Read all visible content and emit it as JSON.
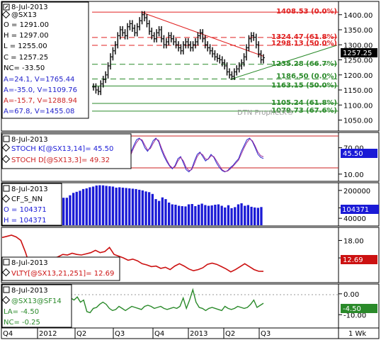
{
  "chart_data": [
    {
      "type": "ohlc",
      "panel": "price",
      "legend": {
        "date": "8-Jul-2013",
        "symbol": "@SX13",
        "lines": [
          "O = 1291.00",
          "H = 1297.00",
          "L = 1255.00",
          "C = 1257.25",
          "NC= -33.50"
        ],
        "indicators": [
          {
            "text": "A=24.1, V=1765.44",
            "color": "#2222cc"
          },
          {
            "text": "A=-35.0, V=1109.76",
            "color": "#2222cc"
          },
          {
            "text": "A=-15.7, V=1288.94",
            "color": "#cc2222"
          },
          {
            "text": "A=67.8, V=1455.08",
            "color": "#2222cc"
          }
        ]
      },
      "y_ticks": [
        "1400.00",
        "1350.00",
        "1300.00",
        "1250.00",
        "1200.00",
        "1150.00",
        "1100.00",
        "1050.00"
      ],
      "ylim": [
        1030,
        1430
      ],
      "last_value": "1257.25",
      "levels": [
        {
          "label": "1408.53 (0.0%)",
          "value": 1408.53,
          "color": "#e02020",
          "style": "solid"
        },
        {
          "label": "1324.47 (61.8%)",
          "value": 1324.47,
          "color": "#e02020",
          "style": "dashed"
        },
        {
          "label": "1298.13 (50.0%)",
          "value": 1298.13,
          "color": "#e02020",
          "style": "dashed"
        },
        {
          "label": "1235.28 (66.7%)",
          "value": 1235.28,
          "color": "#2a8a2a",
          "style": "dashed"
        },
        {
          "label": "1186.50 (0.0%)",
          "value": 1186.5,
          "color": "#2a8a2a",
          "style": "dashed"
        },
        {
          "label": "1163.15 (50.0%)",
          "value": 1163.15,
          "color": "#2a8a2a",
          "style": "solid"
        },
        {
          "label": "1105.24 (61.8%)",
          "value": 1105.24,
          "color": "#2a8a2a",
          "style": "solid"
        },
        {
          "label": "1079.73 (67.6%)",
          "value": 1079.73,
          "color": "#2a8a2a",
          "style": "solid"
        }
      ],
      "watermark": "DTN ProphetX®",
      "closes": [
        1160,
        1150,
        1145,
        1170,
        1185,
        1200,
        1230,
        1260,
        1280,
        1300,
        1330,
        1350,
        1340,
        1330,
        1360,
        1370,
        1355,
        1340,
        1360,
        1380,
        1400,
        1390,
        1370,
        1345,
        1330,
        1320,
        1340,
        1350,
        1320,
        1300,
        1310,
        1330,
        1320,
        1310,
        1300,
        1290,
        1280,
        1300,
        1310,
        1300,
        1290,
        1300,
        1310,
        1330,
        1340,
        1320,
        1300,
        1290,
        1280,
        1270,
        1260,
        1255,
        1250,
        1240,
        1230,
        1210,
        1200,
        1195,
        1210,
        1220,
        1230,
        1240,
        1260,
        1290,
        1320,
        1330,
        1325,
        1300,
        1270,
        1250,
        1257
      ]
    },
    {
      "type": "line",
      "panel": "stochastic",
      "legend": {
        "date": "8-Jul-2013",
        "k_label": "STOCH K[@SX13,14]= 45.50",
        "d_label": "STOCH D[@SX13,3]= 49.32"
      },
      "y_ticks": [
        "70.00",
        "10.00"
      ],
      "ylim": [
        0,
        100
      ],
      "levels": [
        75,
        25
      ],
      "last_value": "45.50",
      "series": [
        {
          "name": "STOCH K",
          "color": "#2a2acc",
          "values": [
            60,
            75,
            88,
            92,
            85,
            70,
            62,
            72,
            86,
            92,
            84,
            65,
            50,
            38,
            28,
            22,
            30,
            45,
            50,
            35,
            20,
            15,
            22,
            40,
            55,
            60,
            50,
            40,
            45,
            55,
            48,
            35,
            25,
            18,
            15,
            18,
            25,
            30,
            38,
            45,
            62,
            75,
            88,
            92,
            84,
            70,
            55,
            48,
            45.5
          ]
        },
        {
          "name": "STOCH D",
          "color": "#9a2a9a",
          "values": [
            55,
            70,
            82,
            90,
            88,
            76,
            65,
            68,
            80,
            90,
            87,
            70,
            55,
            42,
            30,
            24,
            27,
            40,
            48,
            40,
            25,
            18,
            20,
            34,
            50,
            58,
            54,
            44,
            44,
            52,
            50,
            40,
            30,
            20,
            16,
            17,
            22,
            28,
            35,
            42,
            56,
            70,
            82,
            90,
            86,
            74,
            60,
            52,
            49.3
          ]
        }
      ]
    },
    {
      "type": "bar",
      "panel": "open_interest",
      "legend": {
        "date": "8-Jul-2013",
        "symbol": "CF_S_NN",
        "o_label": "O = 104371",
        "h_label": "H = 104371"
      },
      "y_ticks": [
        "200000",
        "100000",
        "40000"
      ],
      "ylim": [
        0,
        240000
      ],
      "last_value": "104371",
      "values": [
        158000,
        158000,
        172000,
        186000,
        192000,
        198000,
        208000,
        212000,
        218000,
        222000,
        228000,
        230000,
        229000,
        226000,
        224000,
        222000,
        216000,
        218000,
        216000,
        214000,
        212000,
        210000,
        208000,
        204000,
        200000,
        194000,
        190000,
        180000,
        150000,
        140000,
        160000,
        150000,
        130000,
        120000,
        118000,
        112000,
        110000,
        108000,
        120000,
        122000,
        110000,
        118000,
        124000,
        116000,
        112000,
        114000,
        118000,
        120000,
        112000,
        102000,
        115000,
        98000,
        104000,
        120000,
        126000,
        112000,
        116000,
        106000,
        102000,
        100000,
        104371
      ]
    },
    {
      "type": "line",
      "panel": "volatility",
      "legend": {
        "date": "8-Jul-2013",
        "label": "VLTY[@SX13,21,251]= 12.69"
      },
      "y_ticks": [
        "18.00",
        "15.00"
      ],
      "ylim": [
        11,
        20
      ],
      "last_value": "12.69",
      "series": [
        {
          "name": "VLTY",
          "color": "#cc1111",
          "values": [
            18.5,
            18.7,
            18.9,
            18.6,
            18.0,
            16.0,
            13.5,
            12.6,
            13.2,
            13.8,
            14.4,
            14.9,
            15.2,
            15.6,
            15.5,
            15.8,
            15.6,
            15.5,
            15.7,
            15.9,
            16.3,
            15.9,
            16.1,
            16.8,
            15.6,
            15.3,
            15.0,
            14.6,
            14.8,
            14.5,
            14.0,
            13.8,
            13.5,
            13.6,
            13.2,
            13.4,
            13.0,
            13.6,
            14.0,
            13.6,
            13.1,
            12.8,
            13.0,
            13.3,
            13.9,
            14.1,
            13.9,
            13.5,
            13.1,
            12.6,
            13.0,
            13.5,
            14.0,
            13.5,
            13.0,
            12.7,
            12.69
          ]
        }
      ]
    },
    {
      "type": "line",
      "panel": "spread",
      "legend": {
        "date": "8-Jul-2013",
        "symbol": "@SX13@SF14",
        "la_label": "LA= -4.50",
        "nc_label": "NC= -0.25"
      },
      "y_ticks": [
        "0.00",
        "-10.00"
      ],
      "ylim": [
        -16,
        4
      ],
      "last_value": "-4.50",
      "series": [
        {
          "name": "@SX13@SF14",
          "color": "#2a8a2a",
          "values": [
            -2,
            -3,
            -1.5,
            -4,
            -3,
            -8.5,
            -9,
            -7,
            -6.5,
            -5,
            -4,
            -5,
            -7,
            -8,
            -7.5,
            -6,
            -7,
            -8,
            -7,
            -6,
            -6.5,
            -7,
            -7.5,
            -6,
            -5.5,
            -6,
            -7,
            -6.5,
            -6,
            -7,
            -7.5,
            -7,
            -6.5,
            -7,
            -6,
            -2,
            -7,
            -3,
            2,
            -4,
            -6.5,
            -7,
            -8,
            -7,
            -6.5,
            -7,
            -7.5,
            -8,
            -6,
            -7,
            -7.5,
            -7,
            -6,
            -6.5,
            -7,
            -6.5,
            -5,
            -3,
            -6.5,
            -5.5,
            -4.5
          ]
        }
      ]
    }
  ],
  "x_axis": {
    "labels": [
      "Q4",
      "2012",
      "Q2",
      "Q3",
      "Q4",
      "2013",
      "Q2",
      "Q3"
    ],
    "interval": "1 Wk"
  },
  "colors": {
    "price_bar": "#000000",
    "up_trend": "#2a8a2a",
    "down_trend": "#cc2222",
    "oi_bar": "#1a1ad6",
    "value_box": "#1a1ad6"
  }
}
